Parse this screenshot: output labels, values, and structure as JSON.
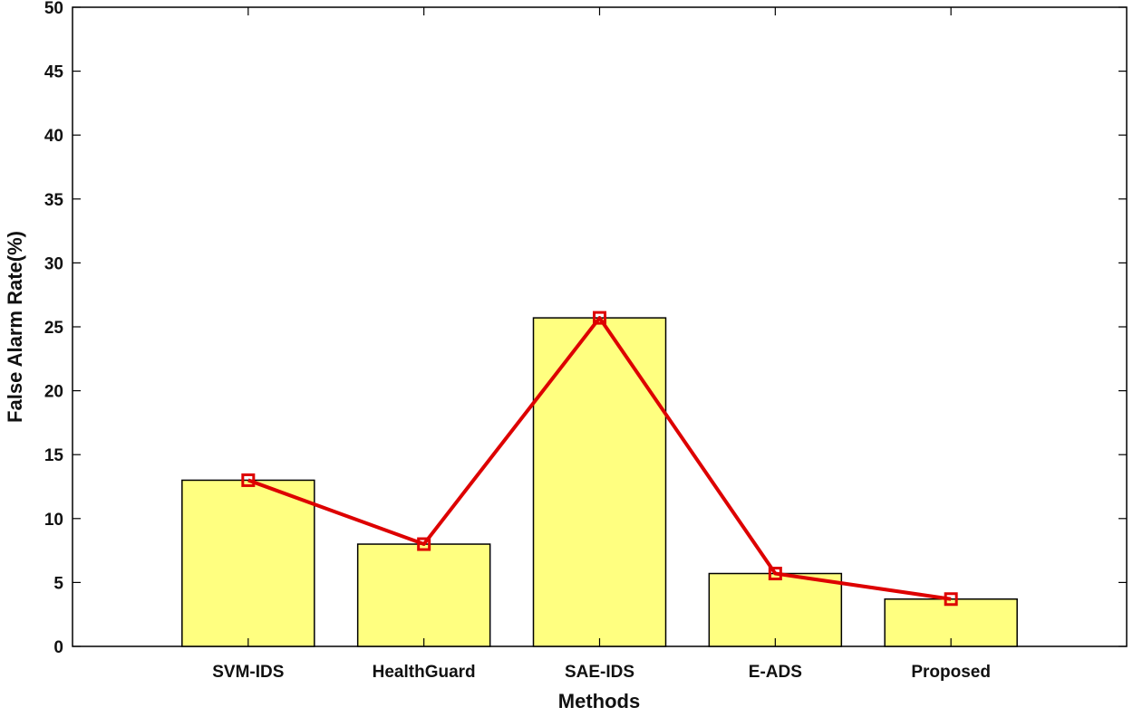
{
  "chart_data": {
    "type": "bar",
    "categories": [
      "SVM-IDS",
      "HealthGuard",
      "SAE-IDS",
      "E-ADS",
      "Proposed"
    ],
    "values": [
      13.0,
      8.0,
      25.7,
      5.7,
      3.7
    ],
    "line_values": [
      13.0,
      8.0,
      25.7,
      5.7,
      3.7
    ],
    "xlabel": "Methods",
    "ylabel": "False Alarm Rate(%)",
    "ylim": [
      0,
      50
    ],
    "yticks": [
      0,
      5,
      10,
      15,
      20,
      25,
      30,
      35,
      40,
      45,
      50
    ],
    "grid": false,
    "colors": {
      "bar_fill": "#ffff80",
      "bar_stroke": "#000000",
      "line": "#dd0000",
      "marker": "#dd0000"
    }
  }
}
